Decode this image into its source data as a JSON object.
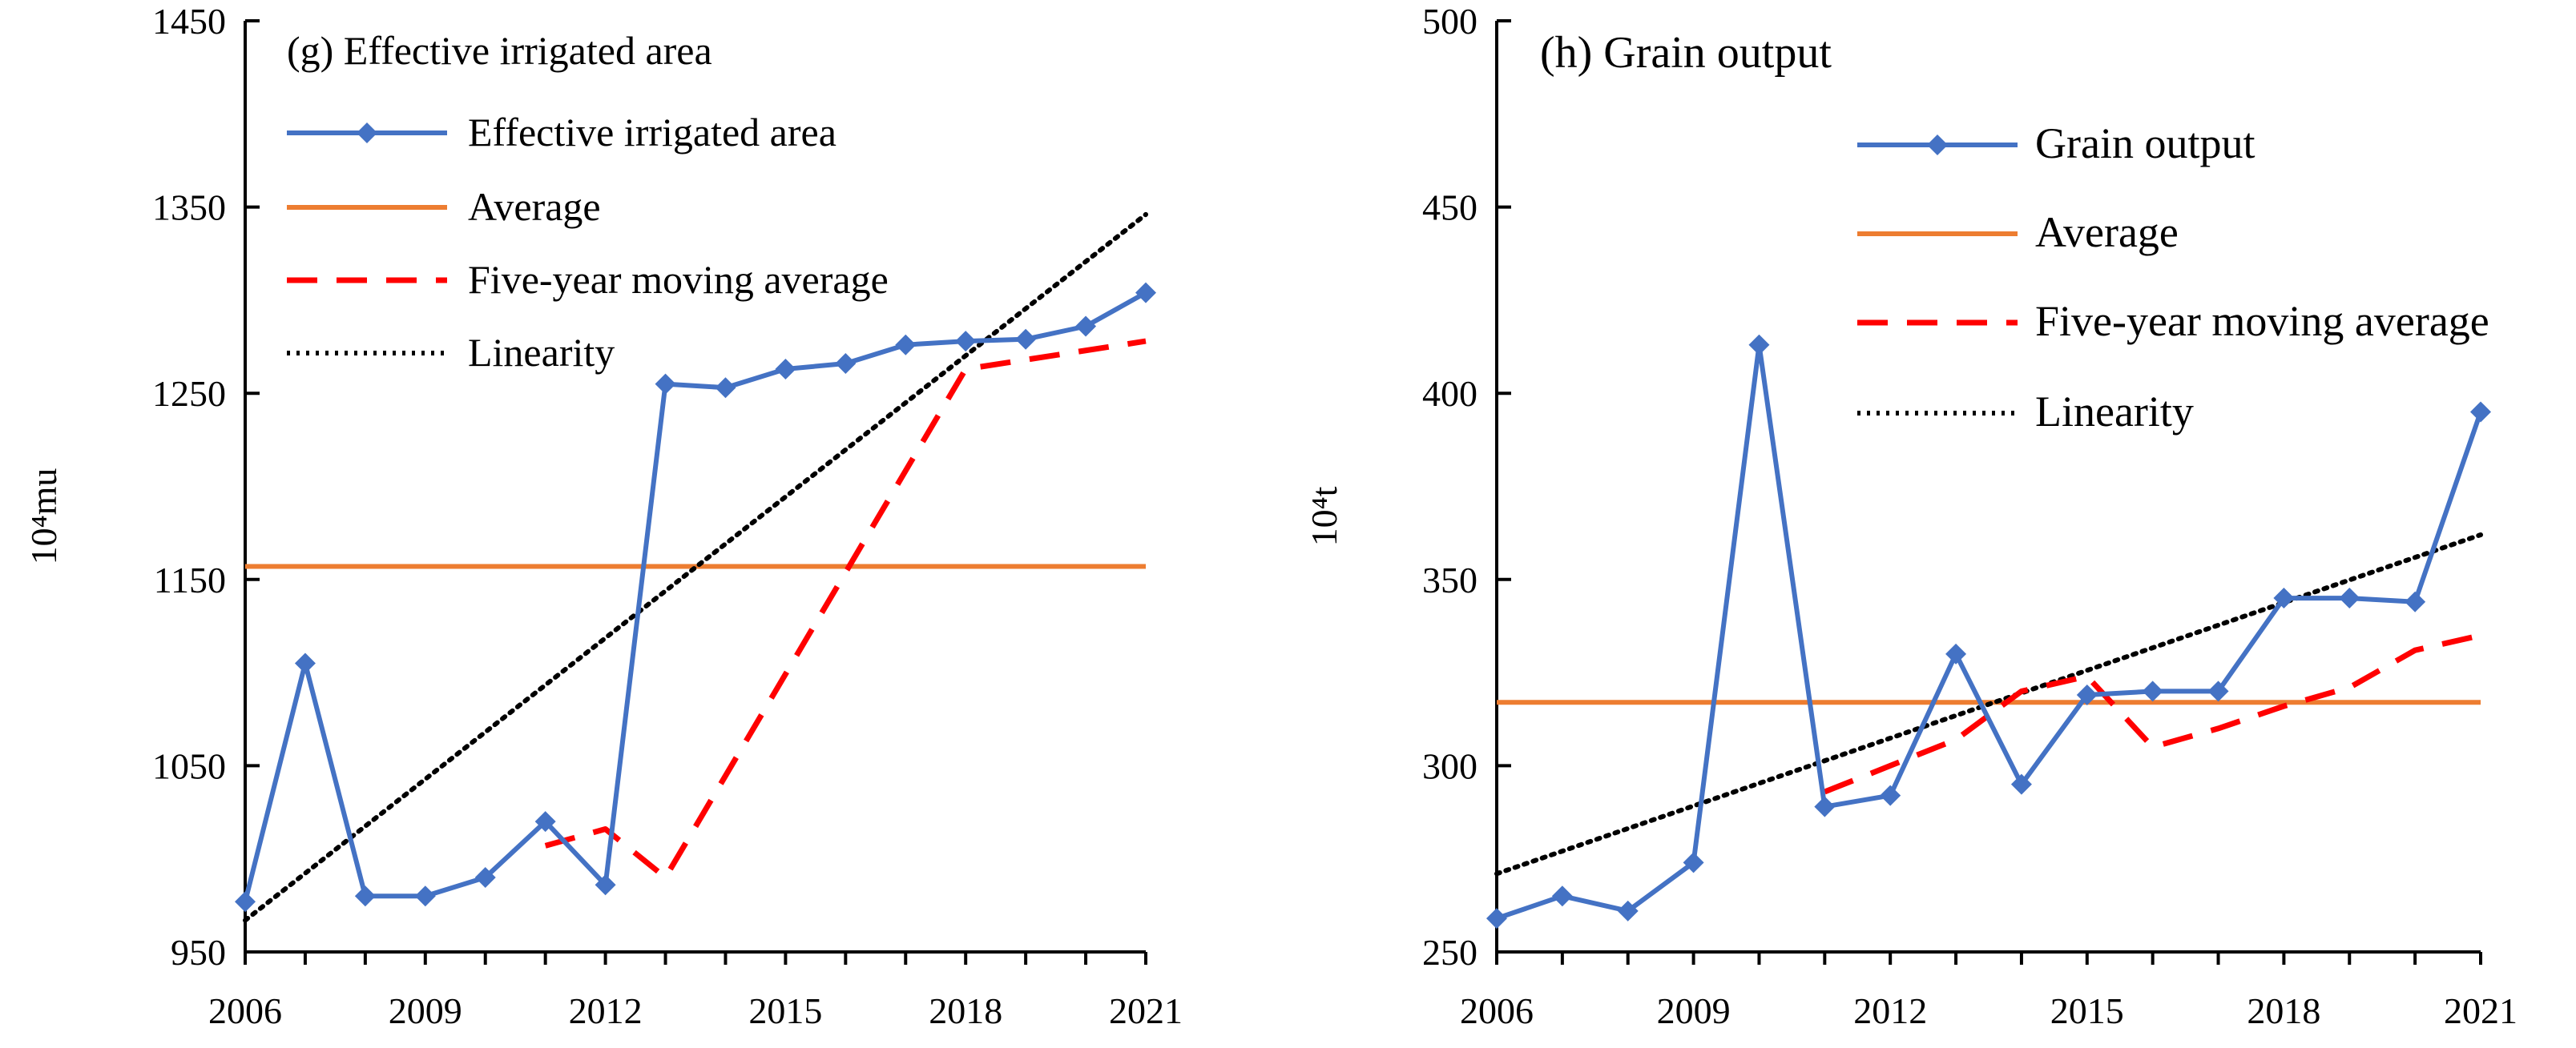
{
  "chart_data": [
    {
      "type": "line",
      "title": "(g) Effective irrigated area",
      "ylabel": "10⁴mu",
      "xlabel": "",
      "x": [
        2006,
        2007,
        2008,
        2009,
        2010,
        2011,
        2012,
        2013,
        2014,
        2015,
        2016,
        2017,
        2018,
        2019,
        2020,
        2021
      ],
      "xticks": [
        "2006",
        "2009",
        "2012",
        "2015",
        "2018",
        "2021"
      ],
      "xlim": [
        2006,
        2021
      ],
      "yticks": [
        "950",
        "1050",
        "1150",
        "1250",
        "1350",
        "1450"
      ],
      "ylim": [
        950,
        1450
      ],
      "legend_position": "top-left",
      "series": [
        {
          "key": "main",
          "name": "Effective irrigated area",
          "color": "#4472C4",
          "style": "solid-diamond",
          "values": [
            977,
            1105,
            980,
            980,
            990,
            1020,
            986,
            1255,
            1253,
            1263,
            1266,
            1276,
            1278,
            1279,
            1286,
            1304
          ]
        },
        {
          "key": "avg",
          "name": "Average",
          "color": "#ED7D31",
          "style": "solid",
          "x": [
            2006,
            2021
          ],
          "values": [
            1157,
            1157
          ]
        },
        {
          "key": "ma",
          "name": "Five-year moving average",
          "color": "#FF0000",
          "style": "dashed",
          "x": [
            2011,
            2012,
            2013,
            2018,
            2021
          ],
          "values": [
            1007,
            1016,
            990,
            1263,
            1278
          ]
        },
        {
          "key": "lin",
          "name": "Linearity",
          "color": "#000000",
          "style": "dotted",
          "x": [
            2006,
            2021
          ],
          "values": [
            967,
            1346
          ]
        }
      ]
    },
    {
      "type": "line",
      "title": "(h) Grain output",
      "ylabel": "10⁴t",
      "xlabel": "",
      "x": [
        2006,
        2007,
        2008,
        2009,
        2010,
        2011,
        2012,
        2013,
        2014,
        2015,
        2016,
        2017,
        2018,
        2019,
        2020,
        2021
      ],
      "xticks": [
        "2006",
        "2009",
        "2012",
        "2015",
        "2018",
        "2021"
      ],
      "xlim": [
        2006,
        2021
      ],
      "yticks": [
        "250",
        "300",
        "350",
        "400",
        "450",
        "500"
      ],
      "ylim": [
        250,
        500
      ],
      "legend_position": "top-right",
      "series": [
        {
          "key": "main",
          "name": "Grain output",
          "color": "#4472C4",
          "style": "solid-diamond",
          "values": [
            259,
            265,
            261,
            274,
            413,
            289,
            292,
            330,
            295,
            319,
            320,
            320,
            345,
            345,
            344,
            395
          ]
        },
        {
          "key": "avg",
          "name": "Average",
          "color": "#ED7D31",
          "style": "solid",
          "x": [
            2006,
            2021
          ],
          "values": [
            317,
            317
          ]
        },
        {
          "key": "ma",
          "name": "Five-year moving average",
          "color": "#FF0000",
          "style": "dashed",
          "x": [
            2011,
            2012,
            2013,
            2014,
            2015,
            2016,
            2017,
            2018,
            2019,
            2020,
            2021
          ],
          "values": [
            293,
            300,
            307,
            320,
            324,
            305,
            310,
            316,
            321,
            331,
            335
          ]
        },
        {
          "key": "lin",
          "name": "Linearity",
          "color": "#000000",
          "style": "dotted",
          "x": [
            2006,
            2021
          ],
          "values": [
            271,
            362
          ]
        }
      ]
    }
  ]
}
